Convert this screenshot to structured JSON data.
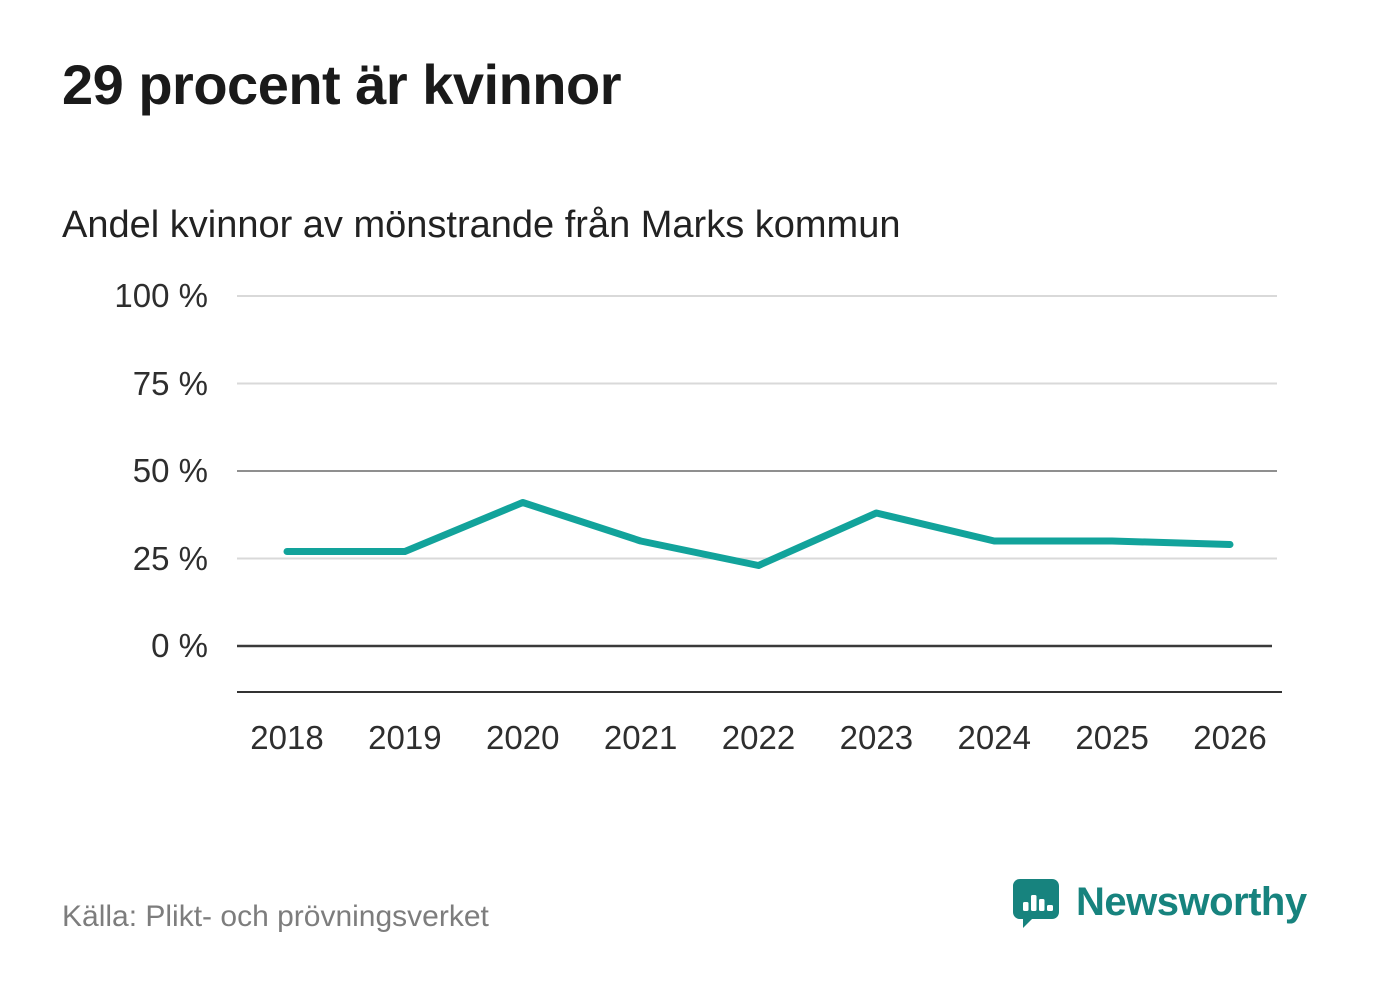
{
  "title": "29 procent är kvinnor",
  "subtitle": "Andel kvinnor av mönstrande från Marks kommun",
  "source": "Källa: Plikt- och prövningsverket",
  "brand": {
    "name": "Newsworthy",
    "color": "#17837e"
  },
  "chart_data": {
    "type": "line",
    "title": "Andel kvinnor av mönstrande från Marks kommun",
    "x": [
      2018,
      2019,
      2020,
      2021,
      2022,
      2023,
      2024,
      2025,
      2026
    ],
    "series": [
      {
        "name": "Andel kvinnor",
        "values": [
          27,
          27,
          41,
          30,
          23,
          38,
          30,
          30,
          29
        ]
      }
    ],
    "xlabel": "",
    "ylabel": "",
    "ylim": [
      0,
      100
    ],
    "yticks": [
      0,
      25,
      50,
      75,
      100
    ],
    "ytick_labels": [
      "0 %",
      "25 %",
      "50 %",
      "75 %",
      "100 %"
    ],
    "grid": true,
    "legend": "none",
    "line_color": "#12a39b",
    "gridline_color": "#d9d9d9",
    "midline_color": "#8f8f8f",
    "zeroline_color": "#3a3a3a",
    "baseline_color": "#333333"
  }
}
